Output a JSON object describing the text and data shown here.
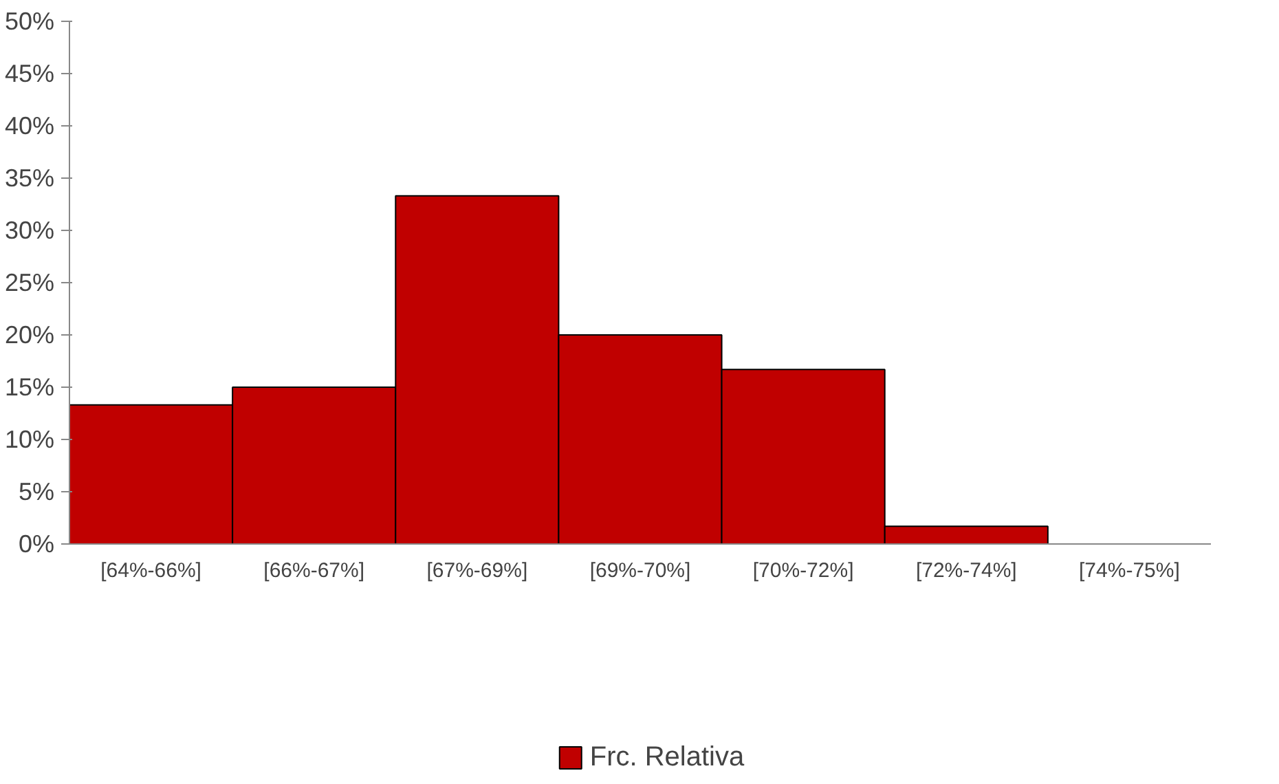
{
  "chart_data": {
    "type": "bar",
    "categories": [
      "[64%-66%]",
      "[66%-67%]",
      "[67%-69%]",
      "[69%-70%]",
      "[70%-72%]",
      "[72%-74%]",
      "[74%-75%]"
    ],
    "series": [
      {
        "name": "Frc. Relativa",
        "color": "#c00000",
        "values": [
          13.3,
          15,
          33.3,
          20,
          16.7,
          1.7,
          0
        ]
      }
    ],
    "ylim": [
      0,
      50
    ],
    "yticks": [
      {
        "value": 0,
        "label": "0%"
      },
      {
        "value": 5,
        "label": "5%"
      },
      {
        "value": 10,
        "label": "10%"
      },
      {
        "value": 15,
        "label": "15%"
      },
      {
        "value": 20,
        "label": "20%"
      },
      {
        "value": 25,
        "label": "25%"
      },
      {
        "value": 30,
        "label": "30%"
      },
      {
        "value": 35,
        "label": "35%"
      },
      {
        "value": 40,
        "label": "40%"
      },
      {
        "value": 45,
        "label": "45%"
      },
      {
        "value": 50,
        "label": "50%"
      }
    ],
    "grid": false,
    "legend": "bottom"
  }
}
